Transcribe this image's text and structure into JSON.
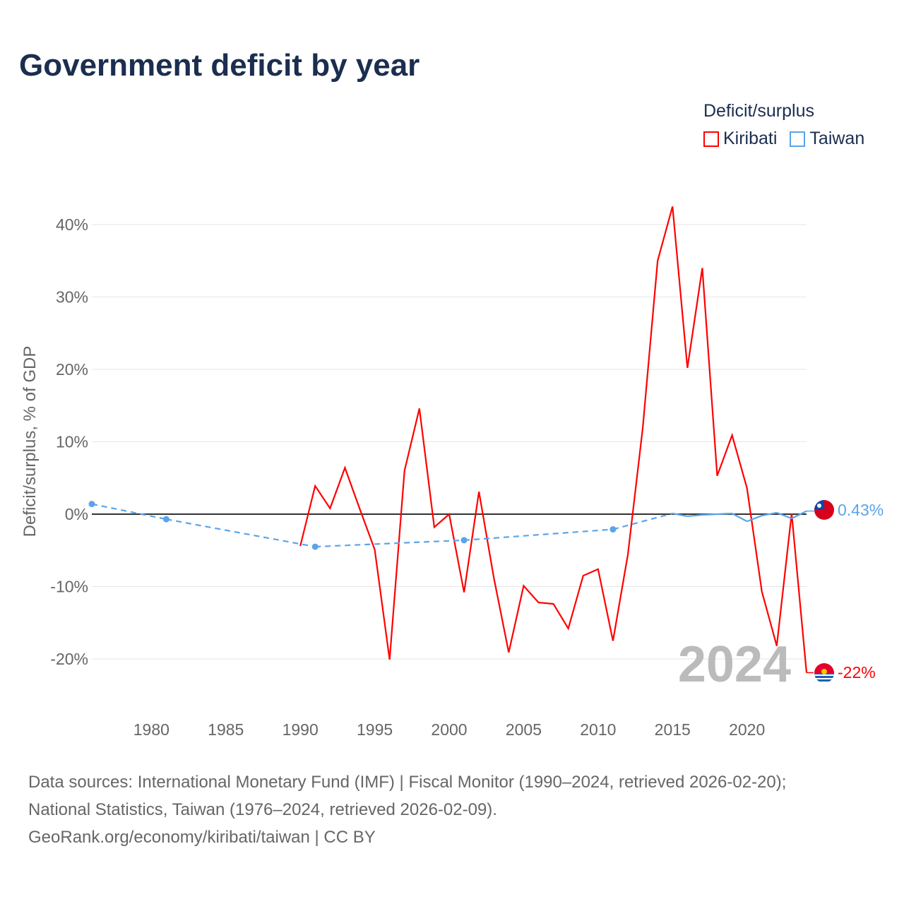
{
  "title": "Government deficit by year",
  "legend": {
    "title": "Deficit/surplus",
    "items": [
      {
        "label": "Kiribati",
        "color": "#ff0000"
      },
      {
        "label": "Taiwan",
        "color": "#5ba4ea"
      }
    ]
  },
  "year_watermark": "2024",
  "end_labels": {
    "kiribati": "-22%",
    "taiwan": "0.43%"
  },
  "sources": {
    "line1": "Data sources: International Monetary Fund (IMF) | Fiscal Monitor (1990–2024, retrieved 2026-02-20);",
    "line2": "National Statistics, Taiwan (1976–2024, retrieved 2026-02-09).",
    "line3": "GeoRank.org/economy/kiribati/taiwan | CC BY"
  },
  "chart_data": {
    "type": "line",
    "title": "Government deficit by year",
    "xlabel": "",
    "ylabel": "Deficit/surplus, % of GDP",
    "xlim": [
      1976,
      2024
    ],
    "ylim": [
      -20,
      40
    ],
    "xticks": [
      1980,
      1985,
      1990,
      1995,
      2000,
      2005,
      2010,
      2015,
      2020
    ],
    "yticks": [
      {
        "v": 40,
        "label": "40%"
      },
      {
        "v": 30,
        "label": "30%"
      },
      {
        "v": 20,
        "label": "20%"
      },
      {
        "v": 10,
        "label": "10%"
      },
      {
        "v": 0,
        "label": "0%"
      },
      {
        "v": -10,
        "label": "-10%"
      },
      {
        "v": -20,
        "label": "-20%"
      }
    ],
    "series": [
      {
        "name": "Kiribati",
        "color": "#ff0000",
        "x": [
          1990,
          1991,
          1992,
          1993,
          1994,
          1995,
          1996,
          1997,
          1998,
          1999,
          2000,
          2001,
          2002,
          2003,
          2004,
          2005,
          2006,
          2007,
          2008,
          2009,
          2010,
          2011,
          2012,
          2013,
          2014,
          2015,
          2016,
          2017,
          2018,
          2019,
          2020,
          2021,
          2022,
          2023,
          2024
        ],
        "y": [
          -4.4,
          3.9,
          0.8,
          6.4,
          0.7,
          -4.9,
          -20.1,
          6.0,
          14.6,
          -1.8,
          0.0,
          -10.8,
          3.1,
          -8.8,
          -19.1,
          -9.9,
          -12.2,
          -12.4,
          -15.8,
          -8.5,
          -7.6,
          -17.5,
          -5.6,
          11.9,
          35.0,
          42.5,
          20.2,
          34.0,
          5.3,
          10.9,
          3.6,
          -10.7,
          -18.2,
          0.1,
          -21.9
        ]
      },
      {
        "name": "Taiwan",
        "color": "#5ba4ea",
        "x": [
          1976,
          1981,
          1991,
          2001,
          2011,
          2015,
          2016,
          2017,
          2018,
          2019,
          2020,
          2021,
          2022,
          2023,
          2024
        ],
        "y": [
          1.4,
          -0.7,
          -4.5,
          -3.6,
          -2.1,
          0.1,
          -0.3,
          -0.1,
          0.0,
          0.1,
          -1.0,
          -0.2,
          0.2,
          -0.6,
          0.43
        ]
      }
    ],
    "grid": true,
    "legend_position": "top-right"
  }
}
